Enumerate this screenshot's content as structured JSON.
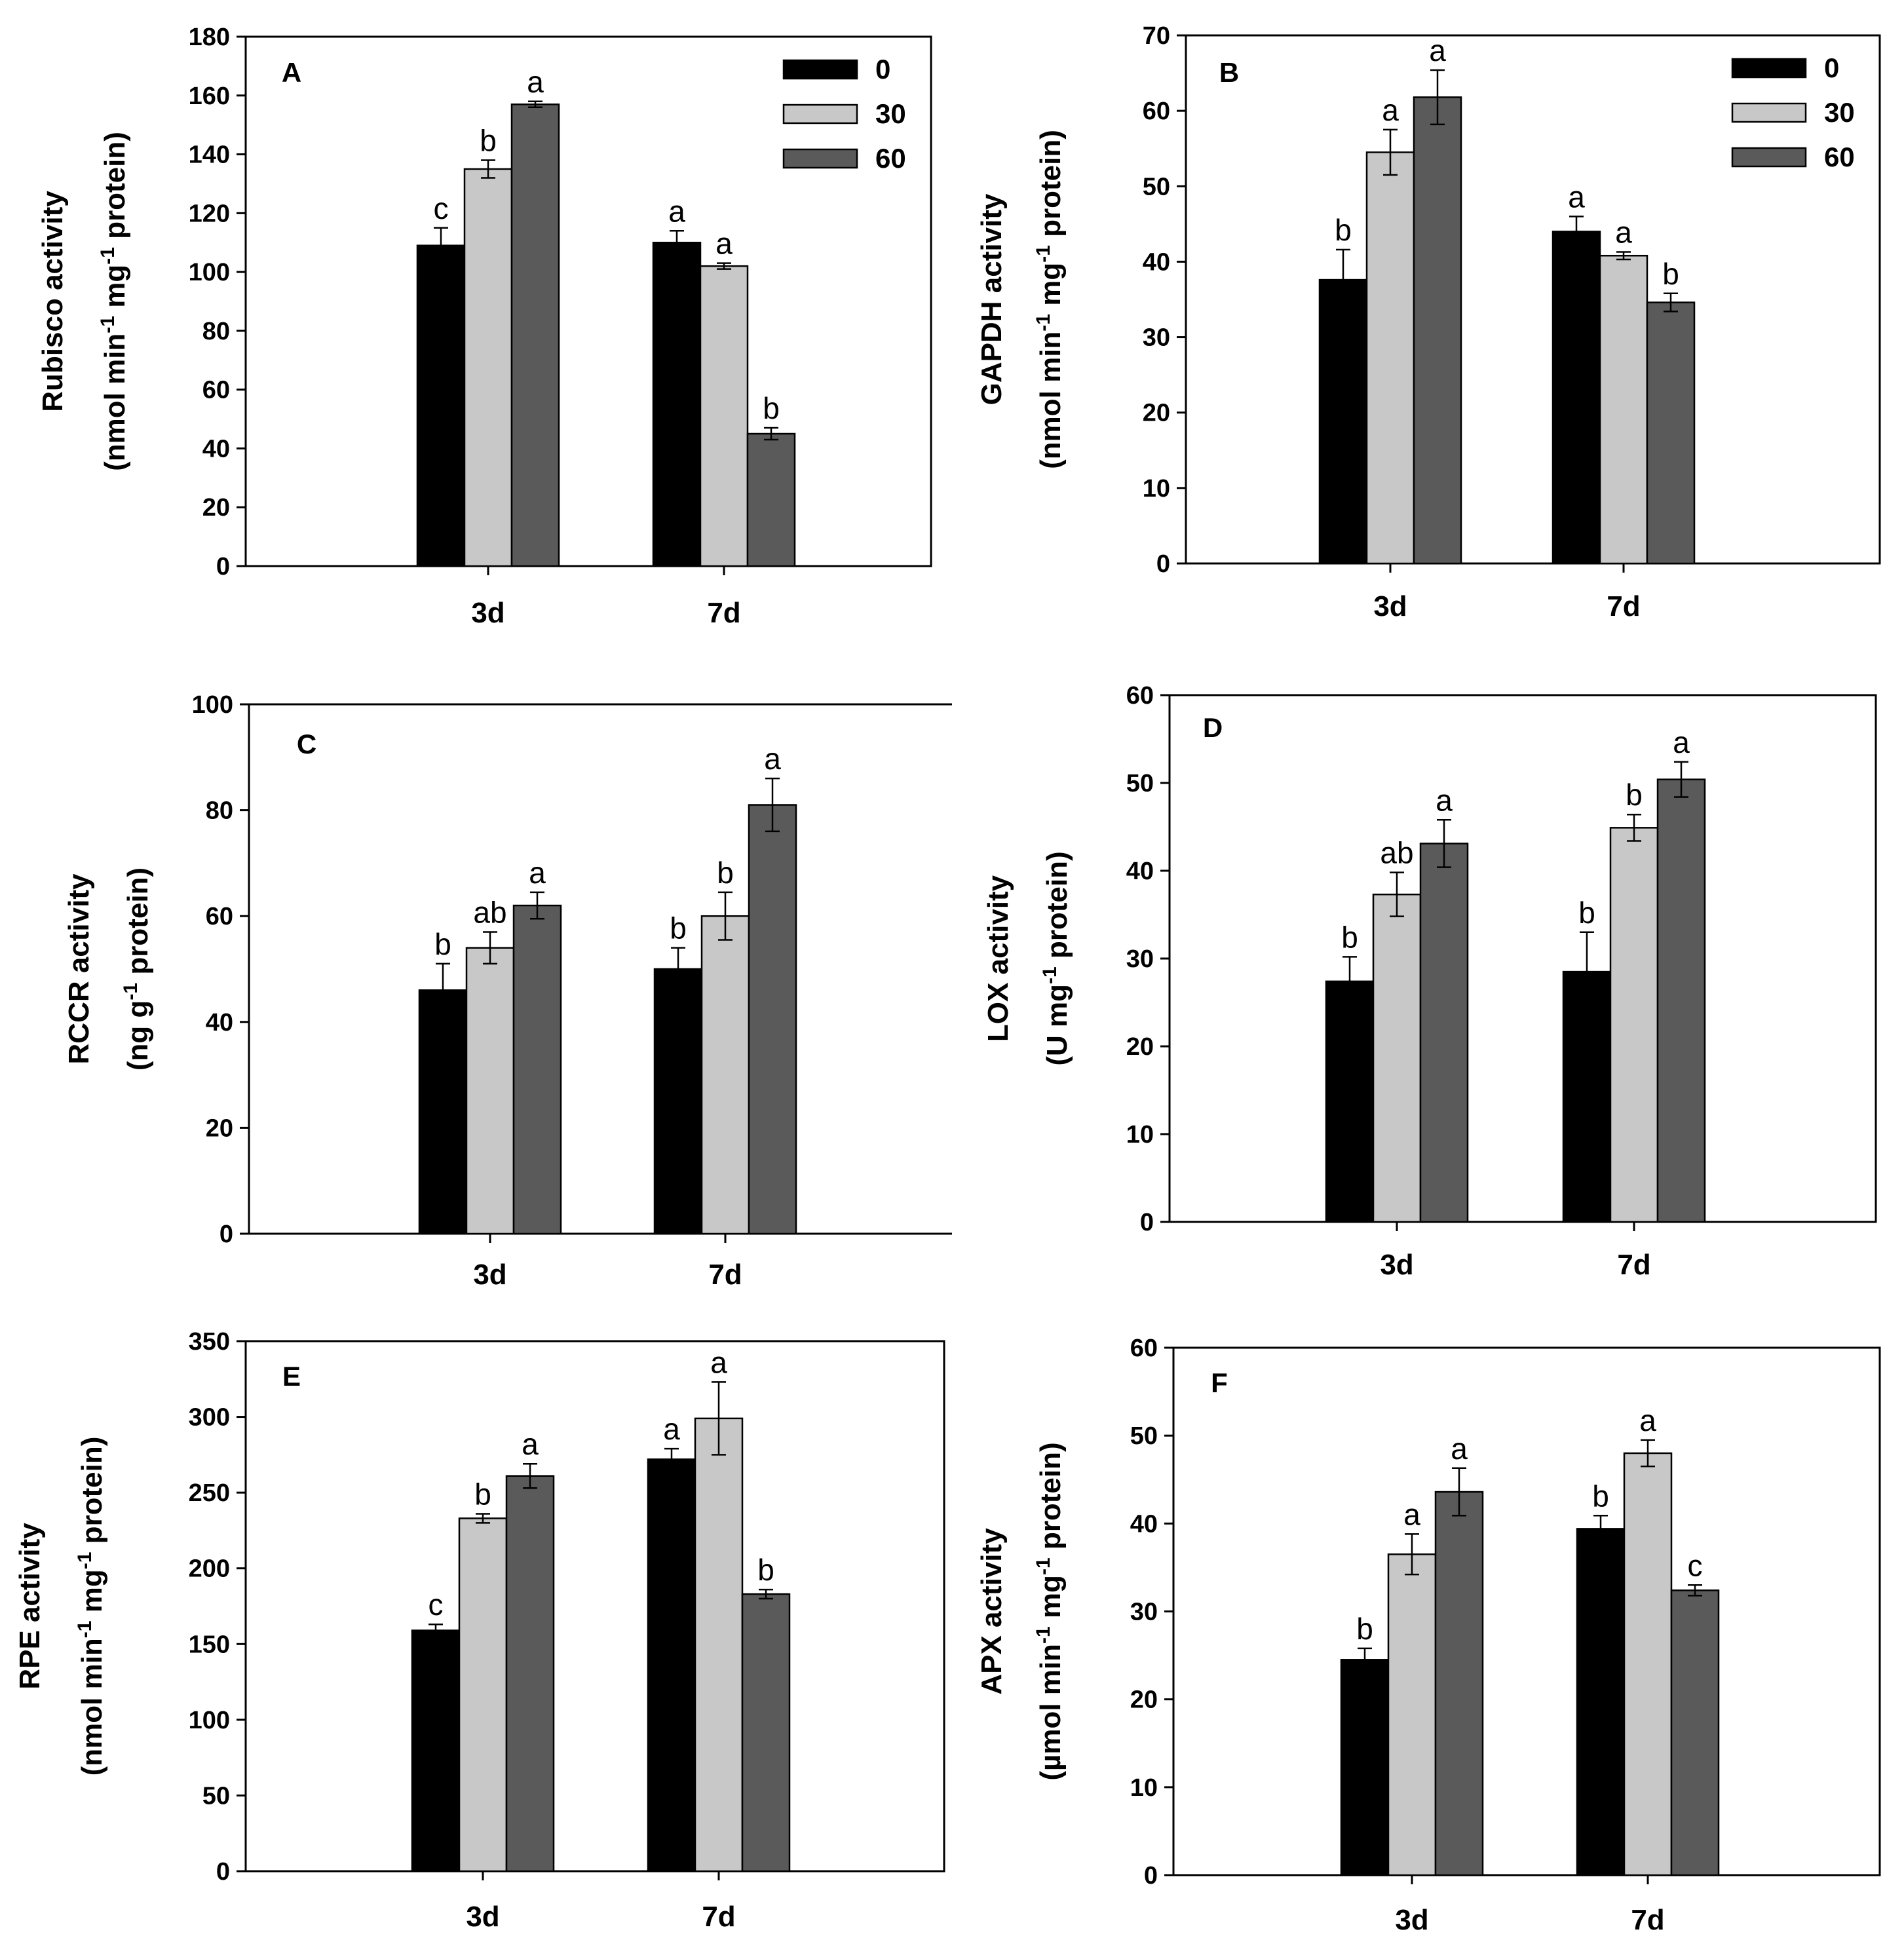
{
  "chart_data": [
    {
      "type": "bar",
      "panel_label": "A",
      "ylabel_line1": "Rubisco activity",
      "ylabel_line2": "(nmol min{-1} mg{-1} protein)",
      "categories": [
        "3d",
        "7d"
      ],
      "ylim": [
        0,
        180
      ],
      "yticks": [
        0,
        20,
        40,
        60,
        80,
        100,
        120,
        140,
        160,
        180
      ],
      "series": [
        {
          "name": "0",
          "color": "#000000",
          "values": [
            109,
            110
          ],
          "errors": [
            6,
            4
          ],
          "letters": [
            "c",
            "a"
          ]
        },
        {
          "name": "30",
          "color": "#c8c8c8",
          "values": [
            135,
            102
          ],
          "errors": [
            3,
            1
          ],
          "letters": [
            "b",
            "a"
          ]
        },
        {
          "name": "60",
          "color": "#5a5a5a",
          "values": [
            157,
            45
          ],
          "errors": [
            1,
            2
          ],
          "letters": [
            "a",
            "b"
          ]
        }
      ],
      "legend": "top-right"
    },
    {
      "type": "bar",
      "panel_label": "B",
      "ylabel_line1": "GAPDH activity",
      "ylabel_line2": "(nmol min{-1} mg{-1} protein)",
      "categories": [
        "3d",
        "7d"
      ],
      "ylim": [
        0,
        70
      ],
      "yticks": [
        0,
        10,
        20,
        30,
        40,
        50,
        60,
        70
      ],
      "series": [
        {
          "name": "0",
          "color": "#000000",
          "values": [
            37.6,
            44.0
          ],
          "errors": [
            4.0,
            2.0
          ],
          "letters": [
            "b",
            "a"
          ]
        },
        {
          "name": "30",
          "color": "#c8c8c8",
          "values": [
            54.5,
            40.8
          ],
          "errors": [
            3.0,
            0.5
          ],
          "letters": [
            "a",
            "a"
          ]
        },
        {
          "name": "60",
          "color": "#5a5a5a",
          "values": [
            61.8,
            34.6
          ],
          "errors": [
            3.6,
            1.2
          ],
          "letters": [
            "a",
            "b"
          ]
        }
      ],
      "legend": "top-right"
    },
    {
      "type": "bar",
      "panel_label": "C",
      "ylabel_line1": "RCCR activity",
      "ylabel_line2": "(ng g{-1} protein)",
      "categories": [
        "3d",
        "7d"
      ],
      "ylim": [
        0,
        100
      ],
      "yticks": [
        0,
        20,
        40,
        60,
        80,
        100
      ],
      "series": [
        {
          "name": "0",
          "color": "#000000",
          "values": [
            46,
            50
          ],
          "errors": [
            5,
            4
          ],
          "letters": [
            "b",
            "b"
          ]
        },
        {
          "name": "30",
          "color": "#c8c8c8",
          "values": [
            54,
            60
          ],
          "errors": [
            3,
            4.5
          ],
          "letters": [
            "ab",
            "b"
          ]
        },
        {
          "name": "60",
          "color": "#5a5a5a",
          "values": [
            62,
            81
          ],
          "errors": [
            2.5,
            5
          ],
          "letters": [
            "a",
            "a"
          ]
        }
      ]
    },
    {
      "type": "bar",
      "panel_label": "D",
      "ylabel_line1": "LOX activity",
      "ylabel_line2": "(U mg{-1} protein)",
      "categories": [
        "3d",
        "7d"
      ],
      "ylim": [
        0,
        60
      ],
      "yticks": [
        0,
        10,
        20,
        30,
        40,
        50,
        60
      ],
      "series": [
        {
          "name": "0",
          "color": "#000000",
          "values": [
            27.4,
            28.5
          ],
          "errors": [
            2.8,
            4.5
          ],
          "letters": [
            "b",
            "b"
          ]
        },
        {
          "name": "30",
          "color": "#c8c8c8",
          "values": [
            37.3,
            44.9
          ],
          "errors": [
            2.5,
            1.5
          ],
          "letters": [
            "ab",
            "b"
          ]
        },
        {
          "name": "60",
          "color": "#5a5a5a",
          "values": [
            43.1,
            50.4
          ],
          "errors": [
            2.7,
            2.0
          ],
          "letters": [
            "a",
            "a"
          ]
        }
      ]
    },
    {
      "type": "bar",
      "panel_label": "E",
      "ylabel_line1": "RPE activity",
      "ylabel_line2": "(nmol min{-1} mg{-1} protein)",
      "categories": [
        "3d",
        "7d"
      ],
      "ylim": [
        0,
        350
      ],
      "yticks": [
        0,
        50,
        100,
        150,
        200,
        250,
        300,
        350
      ],
      "series": [
        {
          "name": "0",
          "color": "#000000",
          "values": [
            159,
            272
          ],
          "errors": [
            4,
            7
          ],
          "letters": [
            "c",
            "a"
          ]
        },
        {
          "name": "30",
          "color": "#c8c8c8",
          "values": [
            233,
            299
          ],
          "errors": [
            3,
            24
          ],
          "letters": [
            "b",
            "a"
          ]
        },
        {
          "name": "60",
          "color": "#5a5a5a",
          "values": [
            261,
            183
          ],
          "errors": [
            8,
            3
          ],
          "letters": [
            "a",
            "b"
          ]
        }
      ]
    },
    {
      "type": "bar",
      "panel_label": "F",
      "ylabel_line1": "APX activity",
      "ylabel_line2": "(µmol min{-1} mg{-1} protein)",
      "categories": [
        "3d",
        "7d"
      ],
      "ylim": [
        0,
        60
      ],
      "yticks": [
        0,
        10,
        20,
        30,
        40,
        50,
        60
      ],
      "series": [
        {
          "name": "0",
          "color": "#000000",
          "values": [
            24.5,
            39.4
          ],
          "errors": [
            1.3,
            1.5
          ],
          "letters": [
            "b",
            "b"
          ]
        },
        {
          "name": "30",
          "color": "#c8c8c8",
          "values": [
            36.5,
            48.0
          ],
          "errors": [
            2.3,
            1.5
          ],
          "letters": [
            "a",
            "a"
          ]
        },
        {
          "name": "60",
          "color": "#5a5a5a",
          "values": [
            43.6,
            32.4
          ],
          "errors": [
            2.7,
            0.6
          ],
          "letters": [
            "a",
            "c"
          ]
        }
      ]
    }
  ]
}
